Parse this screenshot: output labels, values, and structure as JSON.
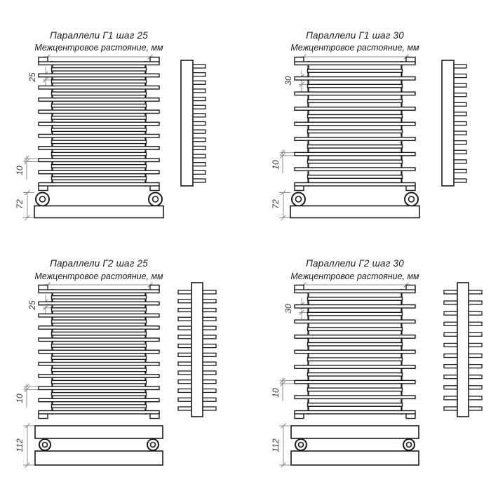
{
  "drawing": {
    "colors": {
      "background": "#ffffff",
      "line": "#1b1b1b",
      "dim_line": "#8f8f8f",
      "dim_text": "#3a3a3a"
    },
    "diagrams": [
      {
        "title": "Параллели Г1 шаг 25",
        "subtitle": "Межцентровое растояние, мм",
        "dims": {
          "pitch": "25",
          "tube": "10",
          "base": "72"
        },
        "rows": 1,
        "tubes": 21,
        "side_tabs": 15
      },
      {
        "title": "Параллели Г1 шаг 30",
        "subtitle": "Межцентровое растояние, мм",
        "dims": {
          "pitch": "30",
          "tube": "10",
          "base": "72"
        },
        "rows": 1,
        "tubes": 17,
        "side_tabs": 13
      },
      {
        "title": "Параллели Г2 шаг 25",
        "subtitle": "Межцентровое растояние, мм",
        "dims": {
          "pitch": "25",
          "tube": "10",
          "base": "112"
        },
        "rows": 2,
        "tubes": 21,
        "side_tabs": 14
      },
      {
        "title": "Параллели Г2 шаг 30",
        "subtitle": "Межцентровое растояние, мм",
        "dims": {
          "pitch": "30",
          "tube": "10",
          "base": "112"
        },
        "rows": 2,
        "tubes": 17,
        "side_tabs": 12
      }
    ]
  }
}
